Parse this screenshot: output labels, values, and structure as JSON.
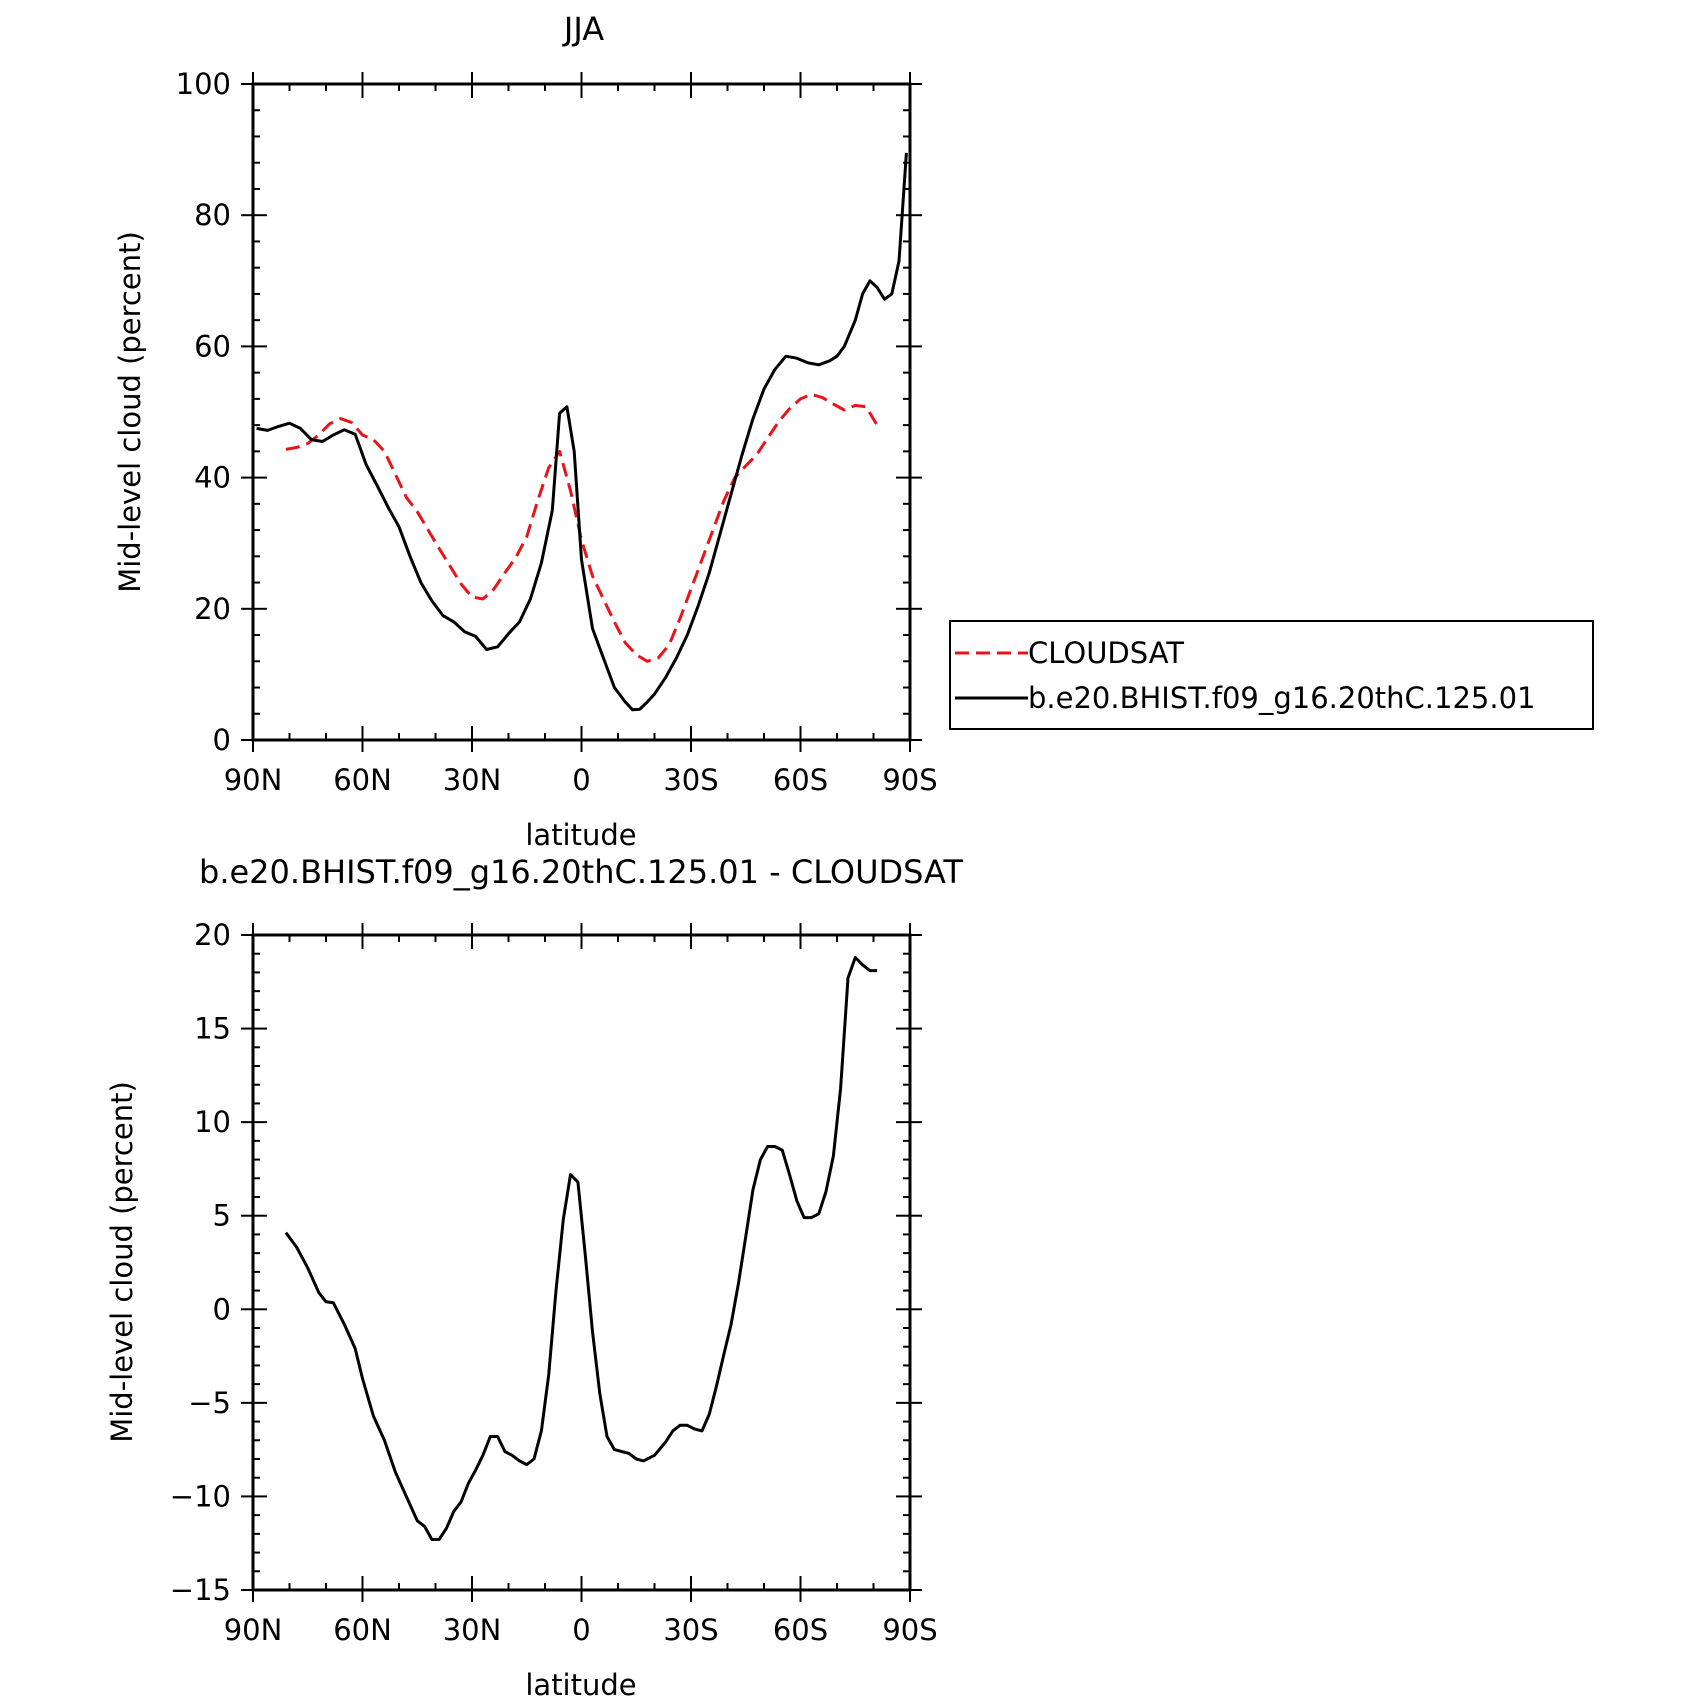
{
  "chart_data": [
    {
      "type": "line",
      "title": "JJA",
      "xlabel": "latitude",
      "ylabel": "Mid-level cloud (percent)",
      "xlim": [
        -90,
        90
      ],
      "ylim": [
        0,
        100
      ],
      "x_ticks": [
        -90,
        -60,
        -30,
        0,
        30,
        60,
        90
      ],
      "x_tick_labels": [
        "90N",
        "60N",
        "30N",
        "0",
        "30S",
        "60S",
        "90S"
      ],
      "y_ticks": [
        0,
        20,
        40,
        60,
        80,
        100
      ],
      "y_tick_labels": [
        "0",
        "20",
        "40",
        "60",
        "80",
        "100"
      ],
      "grid": false,
      "legend_position": "right",
      "series": [
        {
          "name": "CLOUDSAT",
          "color": "#e8141b",
          "dash": "dashed",
          "x": [
            -81,
            -78,
            -75,
            -72,
            -69,
            -66,
            -63,
            -60,
            -57,
            -54,
            -51,
            -48,
            -45,
            -42,
            -39,
            -36,
            -33,
            -30,
            -27,
            -24,
            -21,
            -18,
            -15,
            -12,
            -9,
            -6,
            -3,
            0,
            3,
            6,
            9,
            12,
            15,
            18,
            21,
            24,
            27,
            30,
            33,
            36,
            39,
            42,
            45,
            48,
            51,
            54,
            57,
            60,
            63,
            66,
            69,
            72,
            75,
            78,
            81
          ],
          "y": [
            44.3,
            44.6,
            45.2,
            46.5,
            48.2,
            49.0,
            48.4,
            46.5,
            45.8,
            44.0,
            40.5,
            37.0,
            34.8,
            32.0,
            29.2,
            26.5,
            23.8,
            21.8,
            21.5,
            23.0,
            25.5,
            27.8,
            31.0,
            36.5,
            41.5,
            44.0,
            38.0,
            30.5,
            25.0,
            21.5,
            18.0,
            14.8,
            13.0,
            12.0,
            12.5,
            14.5,
            18.5,
            23.0,
            27.5,
            32.0,
            36.5,
            40.0,
            41.8,
            43.5,
            46.0,
            48.5,
            50.5,
            52.0,
            52.7,
            52.2,
            51.2,
            50.3,
            51.0,
            50.8,
            48.0
          ]
        },
        {
          "name": "b.e20.BHIST.f09_g16.20thC.125.01",
          "color": "#000000",
          "dash": "solid",
          "x": [
            -89,
            -86,
            -83,
            -80,
            -77,
            -74,
            -71,
            -68,
            -65,
            -62,
            -59,
            -56,
            -53,
            -50,
            -47,
            -44,
            -41,
            -38,
            -35,
            -32,
            -29,
            -26,
            -23,
            -20,
            -17,
            -14,
            -11,
            -8,
            -6,
            -4,
            -2,
            0,
            3,
            6,
            9,
            12,
            14,
            16,
            18,
            20,
            23,
            26,
            29,
            32,
            35,
            38,
            41,
            44,
            47,
            50,
            53,
            56,
            59,
            62,
            65,
            68,
            70,
            72,
            75,
            77,
            79,
            81,
            83,
            85,
            87,
            89
          ],
          "y": [
            47.5,
            47.2,
            47.8,
            48.3,
            47.5,
            45.8,
            45.5,
            46.5,
            47.3,
            46.6,
            42.0,
            38.8,
            35.5,
            32.5,
            28.0,
            24.0,
            21.2,
            19.0,
            18.0,
            16.5,
            15.8,
            13.8,
            14.2,
            16.2,
            18.0,
            21.5,
            27.0,
            35.0,
            49.8,
            50.8,
            44.0,
            27.5,
            17.0,
            12.5,
            8.0,
            5.8,
            4.6,
            4.7,
            5.8,
            7.0,
            9.5,
            12.5,
            16.0,
            20.5,
            25.5,
            31.5,
            37.5,
            43.5,
            49.0,
            53.5,
            56.5,
            58.5,
            58.2,
            57.5,
            57.2,
            57.8,
            58.5,
            60.0,
            64.0,
            68.0,
            70.0,
            69.0,
            67.2,
            68.0,
            73.0,
            89.5
          ]
        }
      ]
    },
    {
      "type": "line",
      "title": "b.e20.BHIST.f09_g16.20thC.125.01 - CLOUDSAT",
      "xlabel": "latitude",
      "ylabel": "Mid-level cloud (percent)",
      "xlim": [
        -90,
        90
      ],
      "ylim": [
        -15,
        20
      ],
      "x_ticks": [
        -90,
        -60,
        -30,
        0,
        30,
        60,
        90
      ],
      "x_tick_labels": [
        "90N",
        "60N",
        "30N",
        "0",
        "30S",
        "60S",
        "90S"
      ],
      "y_ticks": [
        -15,
        -10,
        -5,
        0,
        5,
        10,
        15,
        20
      ],
      "y_tick_labels": [
        "−15",
        "−10",
        "−5",
        "0",
        "5",
        "10",
        "15",
        "20"
      ],
      "grid": false,
      "series": [
        {
          "color": "#000000",
          "dash": "solid",
          "x": [
            -81,
            -78,
            -75,
            -72,
            -70,
            -68,
            -65,
            -62,
            -60,
            -57,
            -54,
            -51,
            -48,
            -45,
            -43,
            -41,
            -39,
            -37,
            -35,
            -33,
            -31,
            -29,
            -27,
            -25,
            -23,
            -21,
            -19,
            -17,
            -15,
            -13,
            -11,
            -9,
            -7,
            -5,
            -3,
            -1,
            1,
            3,
            5,
            7,
            9,
            11,
            13,
            15,
            17,
            20,
            23,
            25,
            27,
            29,
            31,
            33,
            35,
            37,
            39,
            41,
            43,
            45,
            47,
            49,
            51,
            53,
            55,
            57,
            59,
            61,
            63,
            65,
            67,
            69,
            71,
            73,
            75,
            77,
            79,
            81
          ],
          "y": [
            4.1,
            3.3,
            2.2,
            0.9,
            0.4,
            0.35,
            -0.8,
            -2.1,
            -3.7,
            -5.7,
            -7.0,
            -8.7,
            -10.0,
            -11.3,
            -11.6,
            -12.3,
            -12.3,
            -11.7,
            -10.8,
            -10.3,
            -9.3,
            -8.6,
            -7.8,
            -6.8,
            -6.8,
            -7.6,
            -7.8,
            -8.1,
            -8.3,
            -8.0,
            -6.5,
            -3.5,
            1.0,
            4.8,
            7.2,
            6.8,
            3.0,
            -1.2,
            -4.5,
            -6.8,
            -7.5,
            -7.6,
            -7.7,
            -8.0,
            -8.1,
            -7.8,
            -7.1,
            -6.5,
            -6.2,
            -6.2,
            -6.4,
            -6.5,
            -5.6,
            -4.1,
            -2.4,
            -0.8,
            1.4,
            3.9,
            6.4,
            8.0,
            8.7,
            8.7,
            8.5,
            7.2,
            5.8,
            4.9,
            4.9,
            5.1,
            6.3,
            8.2,
            11.8,
            17.7,
            18.8,
            18.4,
            18.1,
            18.1
          ]
        }
      ]
    }
  ]
}
